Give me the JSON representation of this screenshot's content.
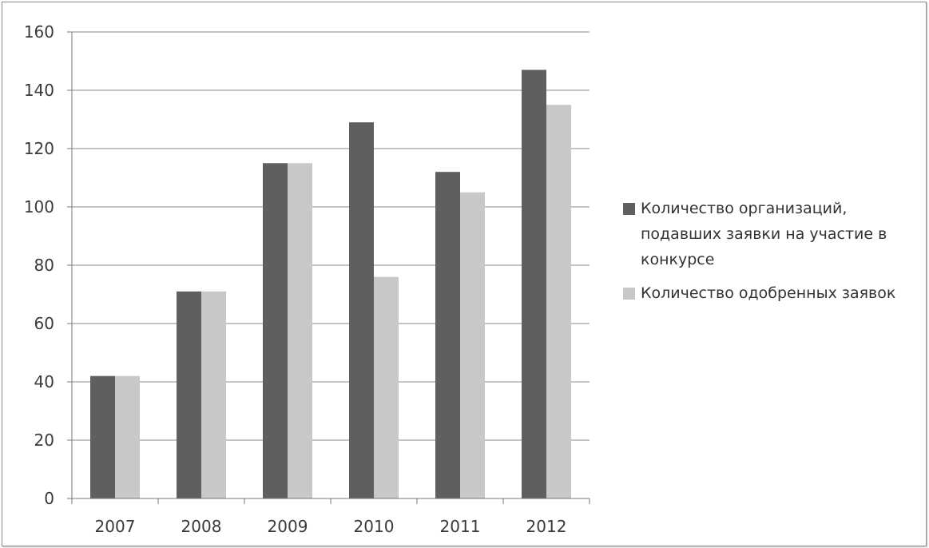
{
  "chart_data": {
    "type": "bar",
    "categories": [
      "2007",
      "2008",
      "2009",
      "2010",
      "2011",
      "2012"
    ],
    "series": [
      {
        "name": "Количество организаций, подавших заявки на участие в конкурсе",
        "values": [
          42,
          71,
          115,
          129,
          112,
          147
        ],
        "color": "#5f5f5f"
      },
      {
        "name": "Количество одобренных заявок",
        "values": [
          42,
          71,
          115,
          76,
          105,
          135
        ],
        "color": "#c8c8c8"
      }
    ],
    "ylim": [
      0,
      160
    ],
    "yticks": [
      "0",
      "20",
      "40",
      "60",
      "80",
      "100",
      "120",
      "140",
      "160"
    ],
    "grid": true,
    "legend_position": "right",
    "title": "",
    "xlabel": "",
    "ylabel": ""
  }
}
